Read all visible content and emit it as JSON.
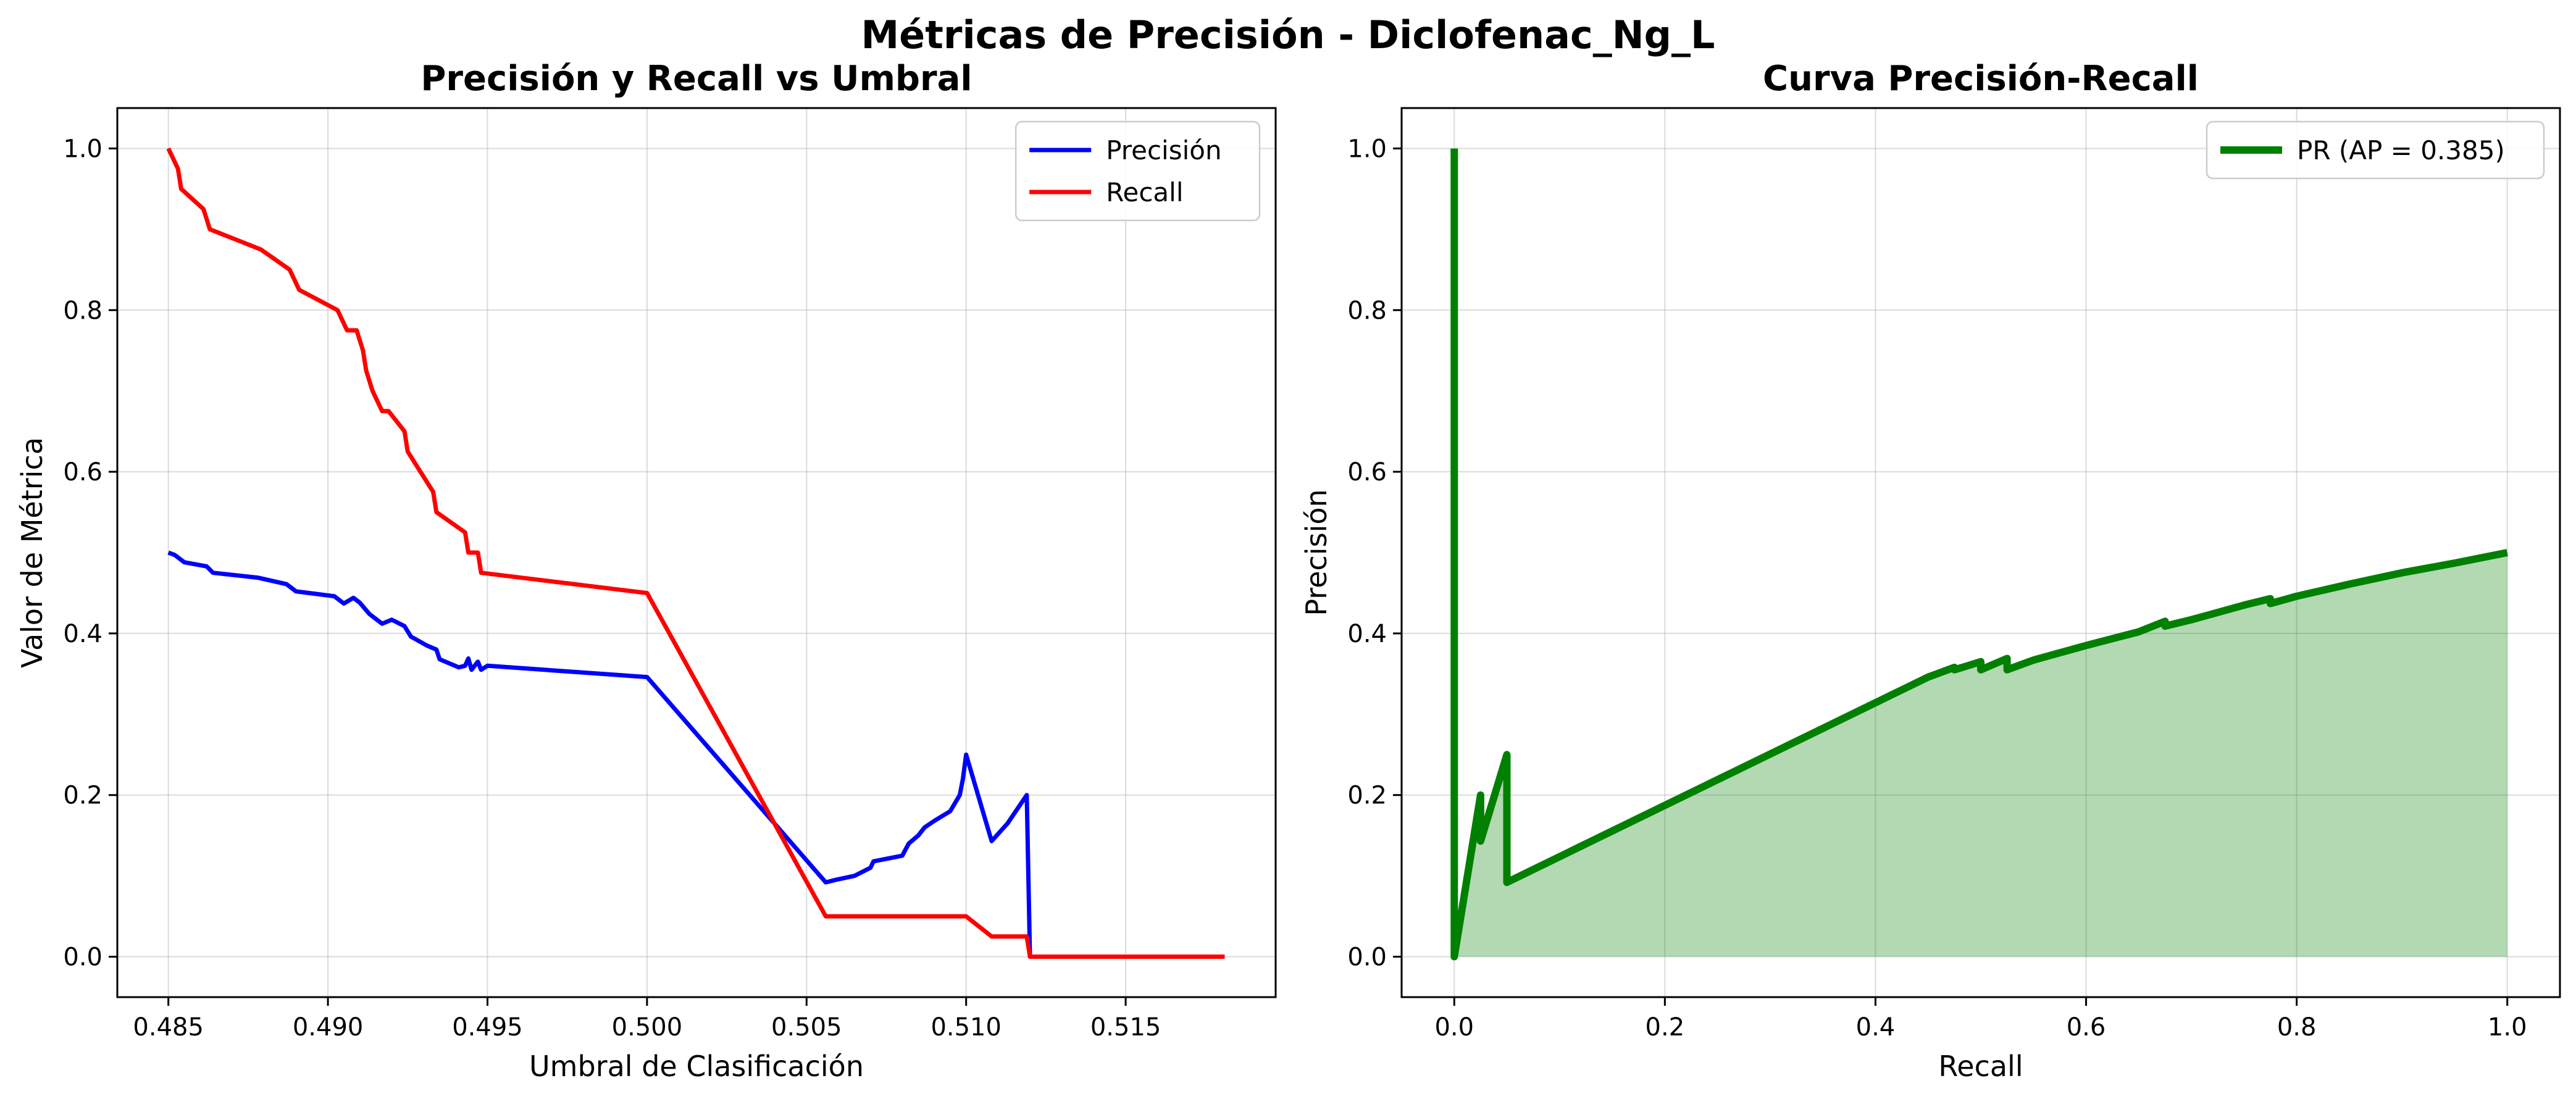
{
  "figure": {
    "suptitle": "Métricas de Precisión - Diclofenac_Ng_L"
  },
  "chart_data": [
    {
      "type": "line",
      "title": "Precisión y Recall vs Umbral",
      "xlabel": "Umbral de Clasificación",
      "ylabel": "Valor de Métrica",
      "xlim": [
        0.4834,
        0.5197
      ],
      "ylim": [
        -0.05,
        1.05
      ],
      "xticks": [
        0.485,
        0.49,
        0.495,
        0.5,
        0.505,
        0.51,
        0.515
      ],
      "xtick_labels": [
        "0.485",
        "0.490",
        "0.495",
        "0.500",
        "0.505",
        "0.510",
        "0.515"
      ],
      "yticks": [
        0.0,
        0.2,
        0.4,
        0.6,
        0.8,
        1.0
      ],
      "ytick_labels": [
        "0.0",
        "0.2",
        "0.4",
        "0.6",
        "0.8",
        "1.0"
      ],
      "grid": true,
      "legend": "top-right",
      "series": [
        {
          "name": "Precisión",
          "color": "#0000ff",
          "points": [
            [
              0.485,
              0.5
            ],
            [
              0.4852,
              0.497
            ],
            [
              0.4855,
              0.488
            ],
            [
              0.4862,
              0.483
            ],
            [
              0.4864,
              0.475
            ],
            [
              0.4878,
              0.469
            ],
            [
              0.4887,
              0.461
            ],
            [
              0.489,
              0.452
            ],
            [
              0.4902,
              0.446
            ],
            [
              0.4905,
              0.437
            ],
            [
              0.4908,
              0.444
            ],
            [
              0.491,
              0.438
            ],
            [
              0.4913,
              0.424
            ],
            [
              0.4917,
              0.412
            ],
            [
              0.492,
              0.417
            ],
            [
              0.4924,
              0.409
            ],
            [
              0.4926,
              0.396
            ],
            [
              0.4931,
              0.385
            ],
            [
              0.4934,
              0.38
            ],
            [
              0.4935,
              0.368
            ],
            [
              0.4941,
              0.358
            ],
            [
              0.4943,
              0.36
            ],
            [
              0.4944,
              0.369
            ],
            [
              0.4945,
              0.355
            ],
            [
              0.4947,
              0.365
            ],
            [
              0.4948,
              0.355
            ],
            [
              0.495,
              0.36
            ],
            [
              0.5,
              0.346
            ],
            [
              0.5056,
              0.092
            ],
            [
              0.5059,
              0.095
            ],
            [
              0.5065,
              0.1
            ],
            [
              0.507,
              0.11
            ],
            [
              0.5071,
              0.118
            ],
            [
              0.508,
              0.125
            ],
            [
              0.5082,
              0.14
            ],
            [
              0.5085,
              0.15
            ],
            [
              0.5087,
              0.16
            ],
            [
              0.509,
              0.168
            ],
            [
              0.5095,
              0.18
            ],
            [
              0.5098,
              0.2
            ],
            [
              0.5099,
              0.22
            ],
            [
              0.51,
              0.25
            ],
            [
              0.5108,
              0.143
            ],
            [
              0.5113,
              0.165
            ],
            [
              0.5119,
              0.2
            ],
            [
              0.512,
              0.0
            ],
            [
              0.5181,
              0.0
            ]
          ]
        },
        {
          "name": "Recall",
          "color": "#ff0000",
          "points": [
            [
              0.485,
              1.0
            ],
            [
              0.4853,
              0.975
            ],
            [
              0.4854,
              0.95
            ],
            [
              0.4861,
              0.925
            ],
            [
              0.4863,
              0.9
            ],
            [
              0.4879,
              0.875
            ],
            [
              0.4888,
              0.85
            ],
            [
              0.4891,
              0.825
            ],
            [
              0.4903,
              0.8
            ],
            [
              0.4906,
              0.775
            ],
            [
              0.4909,
              0.775
            ],
            [
              0.4911,
              0.75
            ],
            [
              0.4912,
              0.725
            ],
            [
              0.4914,
              0.7
            ],
            [
              0.4917,
              0.675
            ],
            [
              0.4919,
              0.675
            ],
            [
              0.4924,
              0.65
            ],
            [
              0.4925,
              0.625
            ],
            [
              0.4933,
              0.575
            ],
            [
              0.4934,
              0.55
            ],
            [
              0.4943,
              0.525
            ],
            [
              0.4944,
              0.5
            ],
            [
              0.4947,
              0.5
            ],
            [
              0.4948,
              0.475
            ],
            [
              0.5,
              0.45
            ],
            [
              0.5056,
              0.05
            ],
            [
              0.51,
              0.05
            ],
            [
              0.5108,
              0.025
            ],
            [
              0.5119,
              0.025
            ],
            [
              0.512,
              0.0
            ],
            [
              0.5181,
              0.0
            ]
          ]
        }
      ]
    },
    {
      "type": "area",
      "title": "Curva Precisión-Recall",
      "xlabel": "Recall",
      "ylabel": "Precisión",
      "xlim": [
        -0.05,
        1.05
      ],
      "ylim": [
        -0.05,
        1.05
      ],
      "xticks": [
        0.0,
        0.2,
        0.4,
        0.6,
        0.8,
        1.0
      ],
      "xtick_labels": [
        "0.0",
        "0.2",
        "0.4",
        "0.6",
        "0.8",
        "1.0"
      ],
      "yticks": [
        0.0,
        0.2,
        0.4,
        0.6,
        0.8,
        1.0
      ],
      "ytick_labels": [
        "0.0",
        "0.2",
        "0.4",
        "0.6",
        "0.8",
        "1.0"
      ],
      "grid": true,
      "legend": "top-right",
      "fill_color": "#008000",
      "fill_opacity": 0.3,
      "series": [
        {
          "name": "PR (AP = 0.385)",
          "color": "#008000",
          "points": [
            [
              0.0,
              1.0
            ],
            [
              0.0,
              0.0
            ],
            [
              0.025,
              0.2
            ],
            [
              0.025,
              0.143
            ],
            [
              0.05,
              0.25
            ],
            [
              0.05,
              0.092
            ],
            [
              0.45,
              0.346
            ],
            [
              0.475,
              0.358
            ],
            [
              0.475,
              0.355
            ],
            [
              0.5,
              0.365
            ],
            [
              0.5,
              0.355
            ],
            [
              0.525,
              0.369
            ],
            [
              0.525,
              0.355
            ],
            [
              0.55,
              0.367
            ],
            [
              0.6,
              0.385
            ],
            [
              0.65,
              0.402
            ],
            [
              0.675,
              0.415
            ],
            [
              0.675,
              0.409
            ],
            [
              0.7,
              0.417
            ],
            [
              0.75,
              0.435
            ],
            [
              0.775,
              0.443
            ],
            [
              0.775,
              0.437
            ],
            [
              0.8,
              0.446
            ],
            [
              0.85,
              0.461
            ],
            [
              0.9,
              0.475
            ],
            [
              0.95,
              0.487
            ],
            [
              1.0,
              0.5
            ]
          ]
        }
      ]
    }
  ]
}
